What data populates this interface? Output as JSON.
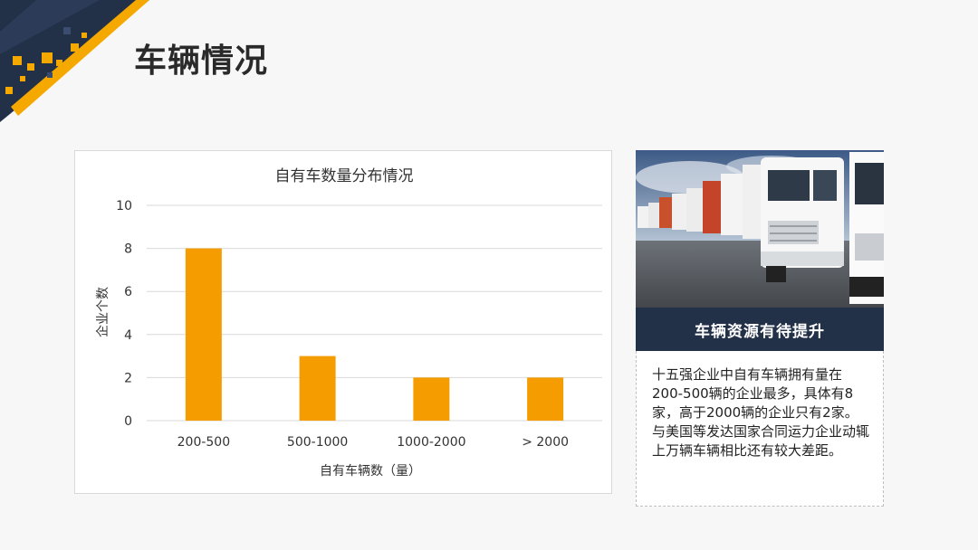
{
  "slide": {
    "title": "车辆情况"
  },
  "side_panel": {
    "caption": "车辆资源有待提升",
    "description": "十五强企业中自有车辆拥有量在200-500辆的企业最多，具体有8家，高于2000辆的企业只有2家。与美国等发达国家合同运力企业动辄上万辆车辆相比还有较大差距。",
    "photo_icon": "truck-fleet-photo"
  },
  "colors": {
    "bar": "#F59C00",
    "accent_yellow": "#F5A800",
    "navy": "#223048",
    "grid": "#d9d9d9"
  },
  "chart_data": {
    "type": "bar",
    "title": "自有车数量分布情况",
    "categories": [
      "200-500",
      "500-1000",
      "1000-2000",
      "> 2000"
    ],
    "values": [
      8,
      3,
      2,
      2
    ],
    "xlabel": "自有车辆数（量）",
    "ylabel": "企业个数",
    "ylim": [
      0,
      10
    ],
    "yticks": [
      0,
      2,
      4,
      6,
      8,
      10
    ],
    "grid": true,
    "legend": "none"
  }
}
